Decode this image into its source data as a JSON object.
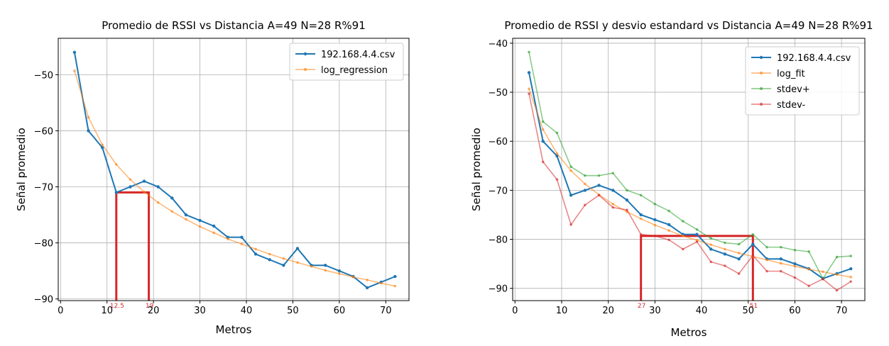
{
  "chart_data": [
    {
      "type": "line",
      "title": "Promedio de RSSI vs Distancia A=49 N=28 R%91",
      "xlabel": "Metros",
      "ylabel": "Señal promedio",
      "xlim": [
        -0.5,
        75
      ],
      "ylim": [
        -90.3,
        -43.5
      ],
      "xticks": [
        0,
        10,
        20,
        30,
        40,
        50,
        60,
        70
      ],
      "yticks": [
        -90,
        -80,
        -70,
        -60,
        -50
      ],
      "grid": true,
      "legend_position": "top-right",
      "series": [
        {
          "name": "192.168.4.4.csv",
          "color": "#1f77b4",
          "x": [
            3,
            6,
            9,
            12,
            15,
            18,
            21,
            24,
            27,
            30,
            33,
            36,
            39,
            42,
            45,
            48,
            51,
            54,
            57,
            60,
            63,
            66,
            69,
            72
          ],
          "y": [
            -46,
            -60,
            -63,
            -71,
            -70,
            -69,
            -70,
            -72,
            -75,
            -76,
            -77,
            -79,
            -79,
            -82,
            -83,
            -84,
            -81,
            -84,
            -84,
            -85,
            -86,
            -88,
            -87,
            -86
          ]
        },
        {
          "name": "log_regression",
          "color": "#ff7f0e",
          "x": [
            3,
            6,
            9,
            12,
            15,
            18,
            21,
            24,
            27,
            30,
            33,
            36,
            39,
            42,
            45,
            48,
            51,
            54,
            57,
            60,
            63,
            66,
            69,
            72
          ],
          "y": [
            -49.3,
            -57.6,
            -62.5,
            -66.0,
            -68.7,
            -70.9,
            -72.8,
            -74.4,
            -75.8,
            -77.1,
            -78.2,
            -79.3,
            -80.2,
            -81.1,
            -82.0,
            -82.8,
            -83.5,
            -84.2,
            -84.9,
            -85.5,
            -86.1,
            -86.6,
            -87.2,
            -87.7
          ]
        }
      ],
      "annotations": [
        {
          "type": "rectangle",
          "x0": 12,
          "x1": 19,
          "y_top": -71,
          "color": "#d62728"
        },
        {
          "label": "12.5",
          "x": 12
        },
        {
          "label": "19",
          "x": 19
        }
      ]
    },
    {
      "type": "line",
      "title": "Promedio de RSSI y desvio estandard vs Distancia A=49 N=28 R%91",
      "xlabel": "Metros",
      "ylabel": "Señal promedio",
      "xlim": [
        -0.5,
        75
      ],
      "ylim": [
        -92.5,
        -39
      ],
      "xticks": [
        0,
        10,
        20,
        30,
        40,
        50,
        60,
        70
      ],
      "yticks": [
        -90,
        -80,
        -70,
        -60,
        -50,
        -40
      ],
      "grid": true,
      "legend_position": "top-right",
      "series": [
        {
          "name": "192.168.4.4.csv",
          "color": "#1f77b4",
          "x": [
            3,
            6,
            9,
            12,
            15,
            18,
            21,
            24,
            27,
            30,
            33,
            36,
            39,
            42,
            45,
            48,
            51,
            54,
            57,
            60,
            63,
            66,
            69,
            72
          ],
          "y": [
            -46,
            -60,
            -63,
            -71,
            -70,
            -69,
            -70,
            -72,
            -75,
            -76,
            -77,
            -79,
            -79,
            -82,
            -83,
            -84,
            -81,
            -84,
            -84,
            -85,
            -86,
            -88,
            -87,
            -86
          ]
        },
        {
          "name": "log_fit",
          "color": "#ff7f0e",
          "x": [
            3,
            6,
            9,
            12,
            15,
            18,
            21,
            24,
            27,
            30,
            33,
            36,
            39,
            42,
            45,
            48,
            51,
            54,
            57,
            60,
            63,
            66,
            69,
            72
          ],
          "y": [
            -49.3,
            -57.6,
            -62.5,
            -66.0,
            -68.7,
            -70.9,
            -72.8,
            -74.4,
            -75.8,
            -77.1,
            -78.2,
            -79.3,
            -80.2,
            -81.1,
            -82.0,
            -82.8,
            -83.5,
            -84.2,
            -84.9,
            -85.5,
            -86.1,
            -86.6,
            -87.2,
            -87.7
          ]
        },
        {
          "name": "stdev+",
          "color": "#2ca02c",
          "x": [
            3,
            6,
            9,
            12,
            15,
            18,
            21,
            24,
            27,
            30,
            33,
            36,
            39,
            42,
            45,
            48,
            51,
            54,
            57,
            60,
            63,
            66,
            69,
            72
          ],
          "y": [
            -41.8,
            -56,
            -58.3,
            -65.2,
            -67,
            -67,
            -66.5,
            -70,
            -71,
            -72.8,
            -74.2,
            -76.3,
            -78,
            -79.8,
            -80.7,
            -81,
            -79,
            -81.6,
            -81.6,
            -82.2,
            -82.5,
            -88,
            -83.6,
            -83.4
          ]
        },
        {
          "name": "stdev-",
          "color": "#d62728",
          "x": [
            3,
            6,
            9,
            12,
            15,
            18,
            21,
            24,
            27,
            30,
            33,
            36,
            39,
            42,
            45,
            48,
            51,
            54,
            57,
            60,
            63,
            66,
            69,
            72
          ],
          "y": [
            -50.3,
            -64.2,
            -67.8,
            -77,
            -73,
            -71,
            -73.5,
            -74,
            -79,
            -79.3,
            -80.1,
            -82,
            -80.5,
            -84.6,
            -85.4,
            -87,
            -83.3,
            -86.5,
            -86.5,
            -87.8,
            -89.5,
            -88.1,
            -90.4,
            -88.6
          ]
        }
      ],
      "annotations": [
        {
          "type": "rectangle",
          "x0": 27,
          "x1": 51,
          "y_top": -79.3,
          "color": "#d62728"
        },
        {
          "label": "27",
          "x": 27
        },
        {
          "label": "51",
          "x": 51
        }
      ]
    }
  ]
}
